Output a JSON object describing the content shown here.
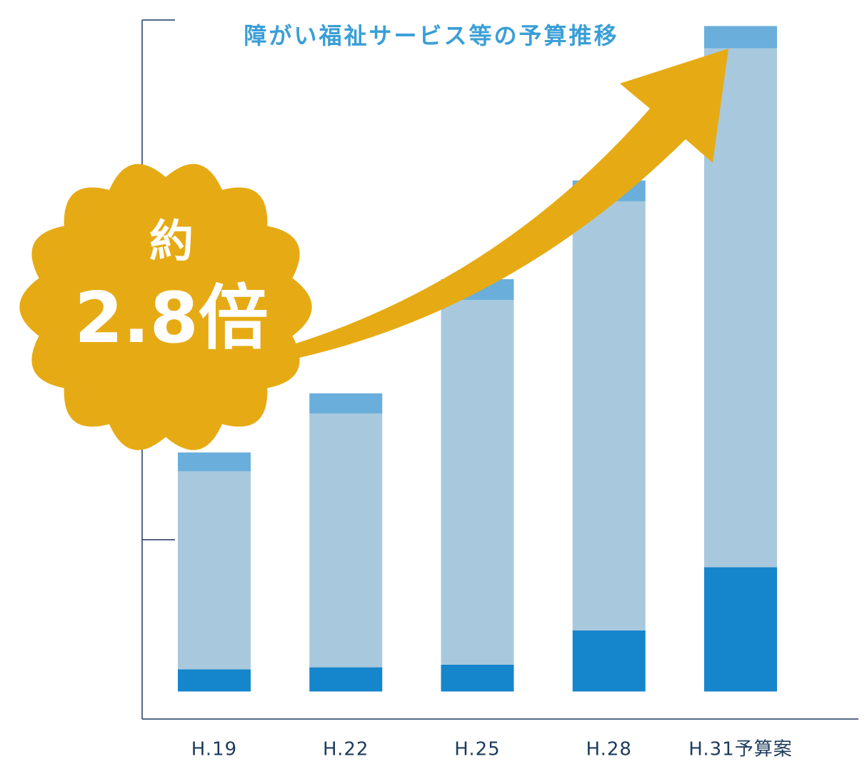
{
  "chart_data": {
    "type": "bar",
    "stacked": true,
    "title": "障がい福祉サービス等の予算推移",
    "annotations": [
      "約",
      "2.8倍"
    ],
    "categories": [
      "H.19",
      "H.22",
      "H.25",
      "H.28",
      "H.31予算案"
    ],
    "series": [
      {
        "color": "#1585cc",
        "values": [
          3.3,
          3.6,
          4.0,
          9.1,
          18.5
        ]
      },
      {
        "color": "#a8c8dd",
        "values": [
          29.5,
          37.8,
          54.3,
          63.9,
          77.3
        ]
      },
      {
        "color": "#6aaedc",
        "values": [
          2.8,
          3.0,
          3.1,
          3.1,
          3.3
        ]
      }
    ],
    "ylim": [
      -4.1,
      100
    ],
    "yticks": [
      22.6,
      100
    ],
    "grid": false
  }
}
